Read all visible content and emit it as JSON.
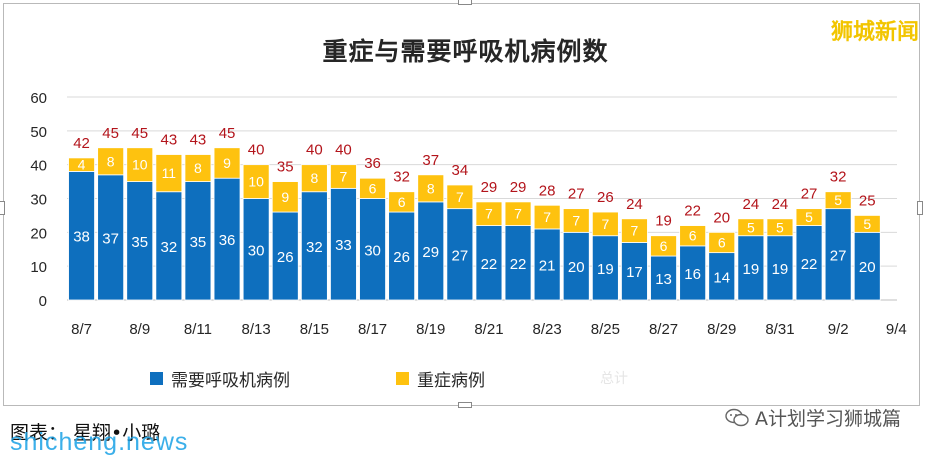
{
  "brand": "狮城新闻",
  "caption": "图表： 星翔•小璐",
  "watermark": "shicheng.news",
  "faint_text": "总计",
  "wechat": {
    "label": "A计划学习狮城篇",
    "icon": "wechat-icon"
  },
  "chart_data": {
    "type": "bar",
    "stacked": true,
    "title": "重症与需要呼吸机病例数",
    "ylim": [
      0,
      60
    ],
    "yticks": [
      0,
      10,
      20,
      30,
      40,
      50,
      60
    ],
    "grid": true,
    "legend_position": "bottom",
    "categories": [
      "8/7",
      "8/8",
      "8/9",
      "8/10",
      "8/11",
      "8/12",
      "8/13",
      "8/14",
      "8/15",
      "8/16",
      "8/17",
      "8/18",
      "8/19",
      "8/20",
      "8/21",
      "8/22",
      "8/23",
      "8/24",
      "8/25",
      "8/26",
      "8/27",
      "8/28",
      "8/29",
      "8/30",
      "8/31",
      "9/1",
      "9/2",
      "9/3"
    ],
    "tick_labels": [
      "8/7",
      "8/9",
      "8/11",
      "8/13",
      "8/15",
      "8/17",
      "8/19",
      "8/21",
      "8/23",
      "8/25",
      "8/27",
      "8/29",
      "8/31",
      "9/2",
      "9/4"
    ],
    "series": [
      {
        "name": "需要呼吸机病例",
        "color": "#0e6fbe",
        "values": [
          38,
          37,
          35,
          32,
          35,
          36,
          30,
          26,
          32,
          33,
          30,
          26,
          29,
          27,
          22,
          22,
          21,
          20,
          19,
          17,
          13,
          16,
          14,
          19,
          19,
          22,
          27,
          20
        ]
      },
      {
        "name": "重症病例",
        "color": "#fec20f",
        "values": [
          4,
          8,
          10,
          11,
          8,
          9,
          10,
          9,
          8,
          7,
          6,
          6,
          8,
          7,
          7,
          7,
          7,
          7,
          7,
          7,
          6,
          6,
          6,
          5,
          5,
          5,
          5,
          5
        ]
      }
    ],
    "totals": [
      42,
      45,
      45,
      43,
      43,
      45,
      40,
      35,
      40,
      40,
      36,
      32,
      37,
      34,
      29,
      29,
      28,
      27,
      26,
      24,
      19,
      22,
      20,
      24,
      24,
      27,
      32,
      25
    ],
    "totals_color": "#b3141b"
  }
}
